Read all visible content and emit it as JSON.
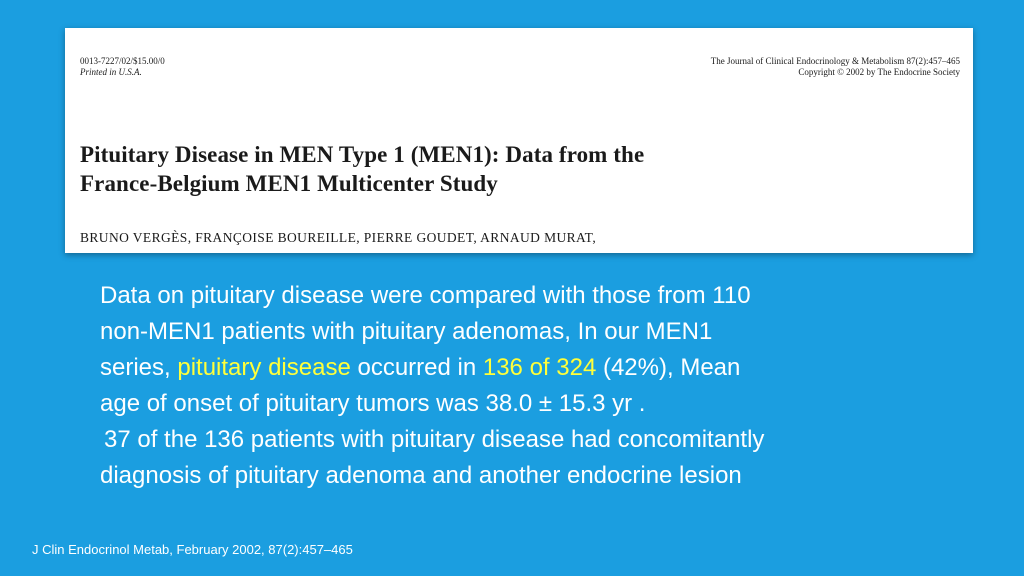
{
  "paper": {
    "header_left_line1": "0013-7227/02/$15.00/0",
    "header_left_line2": "Printed in U.S.A.",
    "header_right_line1": "The Journal of Clinical Endocrinology & Metabolism 87(2):457–465",
    "header_right_line2": "Copyright © 2002 by The Endocrine Society",
    "title_line1": "Pituitary Disease in MEN Type 1 (MEN1): Data from the",
    "title_line2": "France-Belgium MEN1 Multicenter Study",
    "authors": "BRUNO VERGÈS, FRANÇOISE BOUREILLE, PIERRE GOUDET, ARNAUD MURAT,"
  },
  "summary": {
    "line1": "Data on pituitary disease were compared with those from 110",
    "line2": "non-MEN1 patients with pituitary adenomas, In our MEN1",
    "line3_a": "series, ",
    "line3_highlight1": "pituitary disease",
    "line3_b": " occurred in ",
    "line3_highlight2": "136 of 324",
    "line3_c": " (42%), Mean",
    "line4": "age of onset of pituitary tumors was 38.0 ± 15.3 yr .",
    "line5": "37 of the 136 patients with pituitary disease had concomitantly",
    "line6": "diagnosis of pituitary adenoma and another endocrine lesion"
  },
  "citation": "J Clin Endocrinol Metab, February 2002, 87(2):457–465",
  "colors": {
    "background": "#1b9ee0",
    "highlight": "#ffff3a",
    "text": "#ffffff"
  }
}
